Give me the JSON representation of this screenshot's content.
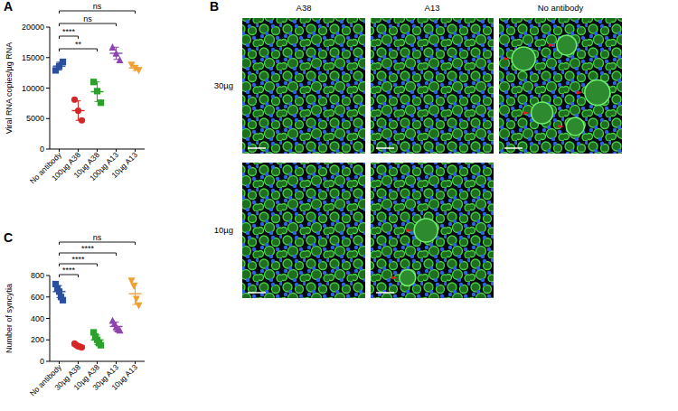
{
  "chart_data": [
    {
      "type": "scatter",
      "title": "A",
      "y_label": "Viral RNA copies/µg RNA",
      "ylim": [
        0,
        20000
      ],
      "yticks": [
        0,
        5000,
        10000,
        15000,
        20000
      ],
      "series": [
        {
          "name": "No antibody",
          "color": "#2b4f9e",
          "marker": "square",
          "values": [
            12900,
            13600,
            14300
          ],
          "mean": 13600,
          "error": 650
        },
        {
          "name": "100µg A38",
          "color": "#d62728",
          "marker": "circle",
          "values": [
            8100,
            6300,
            4700
          ],
          "mean": 6300,
          "error": 1600
        },
        {
          "name": "10µg A38",
          "color": "#2ca02c",
          "marker": "square",
          "values": [
            11000,
            9500,
            7600
          ],
          "mean": 9400,
          "error": 1600
        },
        {
          "name": "100µg A13",
          "color": "#8e44ad",
          "marker": "triangle-up",
          "values": [
            16700,
            15700,
            14600
          ],
          "mean": 15700,
          "error": 1000
        },
        {
          "name": "10µg A13",
          "color": "#f0a030",
          "marker": "triangle-down",
          "values": [
            13800,
            13300,
            12900
          ],
          "mean": 13300,
          "error": 400
        }
      ],
      "annotations": [
        {
          "text": "ns",
          "from": 0,
          "to": 4
        },
        {
          "text": "ns",
          "from": 0,
          "to": 3
        },
        {
          "text": "****",
          "from": 0,
          "to": 1
        },
        {
          "text": "**",
          "from": 0,
          "to": 2
        }
      ]
    },
    {
      "type": "scatter",
      "title": "C",
      "y_label": "Number of syncytia",
      "ylim": [
        0,
        800
      ],
      "yticks": [
        0,
        200,
        400,
        600,
        800
      ],
      "series": [
        {
          "name": "No antibody",
          "color": "#2b4f9e",
          "marker": "square",
          "values": [
            720,
            680,
            650,
            600,
            570
          ],
          "mean": 650,
          "error": 55
        },
        {
          "name": "30µg A38",
          "color": "#d62728",
          "marker": "circle",
          "values": [
            165,
            150,
            140,
            135,
            130
          ],
          "mean": 145,
          "error": 15
        },
        {
          "name": "10µg A38",
          "color": "#2ca02c",
          "marker": "square",
          "values": [
            270,
            230,
            200,
            170,
            150
          ],
          "mean": 200,
          "error": 45
        },
        {
          "name": "30µg A13",
          "color": "#8e44ad",
          "marker": "triangle-up",
          "values": [
            380,
            350,
            320,
            300,
            290
          ],
          "mean": 325,
          "error": 40
        },
        {
          "name": "10µg A13",
          "color": "#f0a030",
          "marker": "triangle-down",
          "values": [
            750,
            700,
            580,
            520
          ],
          "mean": 630,
          "error": 100
        }
      ],
      "annotations": [
        {
          "text": "ns",
          "from": 0,
          "to": 4
        },
        {
          "text": "****",
          "from": 0,
          "to": 3
        },
        {
          "text": "****",
          "from": 0,
          "to": 2
        },
        {
          "text": "****",
          "from": 0,
          "to": 1
        }
      ]
    }
  ],
  "panel_b": {
    "title": "B",
    "columns": [
      "A38",
      "A13",
      "No antibody"
    ],
    "rows": [
      "30µg",
      "10µg"
    ]
  }
}
